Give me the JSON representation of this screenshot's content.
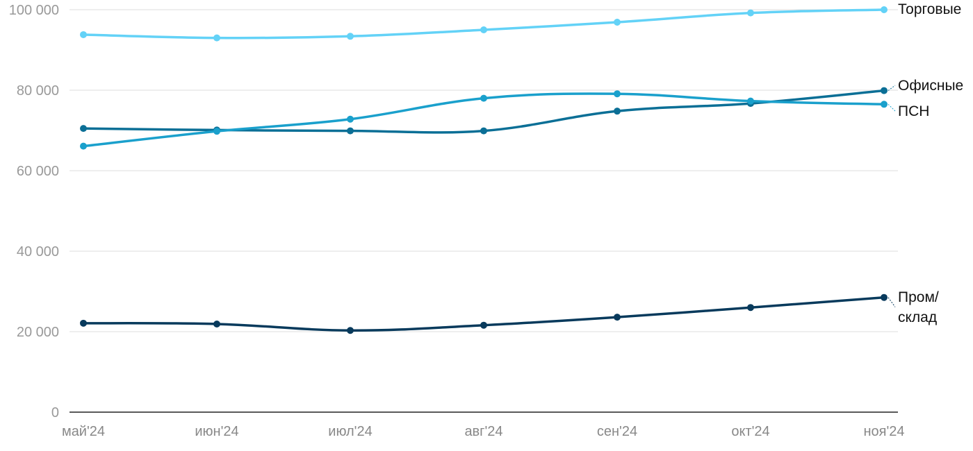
{
  "chart_data": {
    "type": "line",
    "x": [
      "май'24",
      "июн'24",
      "июл'24",
      "авг'24",
      "сен'24",
      "окт'24",
      "ноя'24"
    ],
    "ylim": [
      0,
      100000
    ],
    "yticks": [
      0,
      20000,
      40000,
      60000,
      80000,
      100000
    ],
    "ytick_labels": [
      "0",
      "20 000",
      "40 000",
      "60 000",
      "80 000",
      "100 000"
    ],
    "grid": true,
    "legend": "direct labels at right end of lines",
    "series": [
      {
        "name": "Торговые",
        "label_lines": [
          "Торговые"
        ],
        "color": "#63d2f7",
        "values": [
          93800,
          93000,
          93400,
          95000,
          96900,
          99200,
          100000
        ]
      },
      {
        "name": "Офисные",
        "label_lines": [
          "Офисные"
        ],
        "color": "#0b6f96",
        "values": [
          70500,
          70100,
          69900,
          69900,
          74800,
          76700,
          79900
        ]
      },
      {
        "name": "ПСН",
        "label_lines": [
          "ПСН"
        ],
        "color": "#1aa0cc",
        "values": [
          66100,
          69800,
          72800,
          78000,
          79100,
          77300,
          76500
        ]
      },
      {
        "name": "Пром/ склад",
        "label_lines": [
          "Пром/",
          "склад"
        ],
        "color": "#083a5c",
        "values": [
          22100,
          21900,
          20300,
          21600,
          23600,
          26000,
          28500
        ]
      }
    ]
  }
}
